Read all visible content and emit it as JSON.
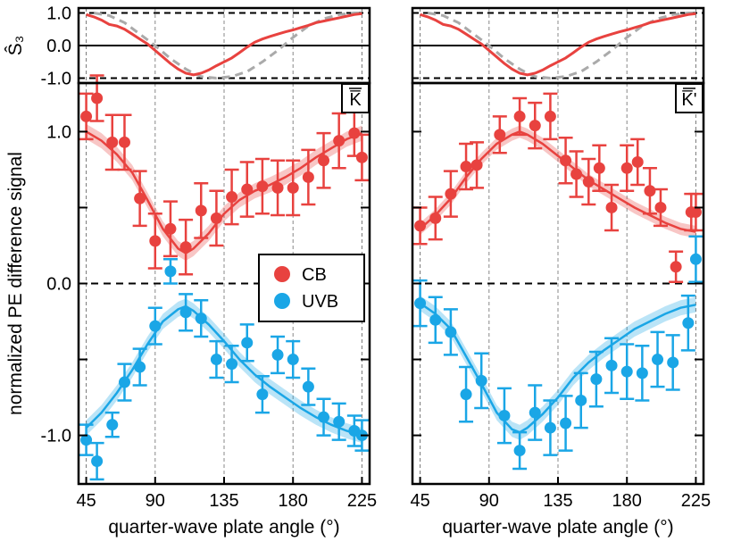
{
  "chart_data": {
    "type": "scatter",
    "colors": {
      "CB": "#e8423f",
      "UVB": "#1aa6e6",
      "theory_s3": "#aaaaaa"
    },
    "xticks": [
      45,
      90,
      135,
      180,
      225
    ],
    "xlim": [
      40,
      230
    ],
    "xlabel": "quarter-wave plate angle (°)",
    "ylabel": "normalized PE difference signal",
    "ylim": [
      -1.32,
      1.32
    ],
    "yticks": [
      {
        "value": 1.0,
        "label": "1.0"
      },
      {
        "value": 0.0,
        "label": "0.0"
      },
      {
        "value": -1.0,
        "label": "-1.0"
      }
    ],
    "s3_label": "Ŝ₃",
    "s3_ylim": [
      -1.15,
      1.15
    ],
    "s3_yticks": [
      {
        "value": 1.0,
        "label": "1.0"
      },
      {
        "value": 0.0,
        "label": "0.0"
      },
      {
        "value": -1.0,
        "label": "-1.0"
      }
    ],
    "legend": {
      "placement": "center-right",
      "entries": [
        {
          "name": "CB",
          "label": "CB"
        },
        {
          "name": "UVB",
          "label": "UVB"
        }
      ]
    },
    "panels": [
      {
        "valley": "K̅",
        "s3_measured": {
          "x": [
            45,
            50,
            55,
            60,
            65,
            70,
            75,
            80,
            85,
            90,
            95,
            100,
            105,
            110,
            115,
            120,
            125,
            130,
            135,
            140,
            145,
            150,
            155,
            160,
            165,
            170,
            175,
            180,
            185,
            190,
            195,
            200,
            205,
            210,
            215,
            220,
            225
          ],
          "y": [
            0.95,
            0.88,
            0.78,
            0.65,
            0.6,
            0.5,
            0.35,
            0.2,
            0.05,
            -0.15,
            -0.35,
            -0.55,
            -0.72,
            -0.85,
            -0.9,
            -0.85,
            -0.75,
            -0.62,
            -0.5,
            -0.38,
            -0.22,
            -0.05,
            0.1,
            0.2,
            0.28,
            0.35,
            0.42,
            0.48,
            0.55,
            0.62,
            0.7,
            0.75,
            0.8,
            0.85,
            0.9,
            0.95,
            0.98
          ]
        },
        "s3_theory": {
          "x": [
            50,
            60,
            70,
            80,
            90,
            100,
            110,
            115,
            120,
            130,
            140,
            150,
            160,
            170,
            180,
            190,
            200,
            210,
            220,
            225
          ],
          "y": [
            1.0,
            0.92,
            0.7,
            0.35,
            0.0,
            -0.4,
            -0.72,
            -0.85,
            -0.95,
            -1.0,
            -0.95,
            -0.8,
            -0.5,
            -0.15,
            0.25,
            0.6,
            0.82,
            0.95,
            1.0,
            1.0
          ]
        },
        "series": [
          {
            "name": "CB",
            "x": [
              45,
              52,
              62,
              70,
              80,
              90,
              100,
              110,
              120,
              130,
              140,
              150,
              160,
              170,
              180,
              190,
              200,
              210,
              220,
              225
            ],
            "y": [
              1.1,
              1.22,
              0.93,
              0.93,
              0.56,
              0.28,
              0.36,
              0.24,
              0.48,
              0.43,
              0.57,
              0.62,
              0.64,
              0.63,
              0.63,
              0.7,
              0.81,
              0.94,
              0.99,
              0.83
            ],
            "err": [
              0.15,
              0.15,
              0.18,
              0.18,
              0.18,
              0.18,
              0.18,
              0.18,
              0.18,
              0.18,
              0.18,
              0.18,
              0.18,
              0.18,
              0.18,
              0.18,
              0.18,
              0.18,
              0.15,
              0.15
            ],
            "fit_x": [
              45,
              55,
              65,
              75,
              85,
              95,
              105,
              110,
              115,
              125,
              135,
              145,
              155,
              165,
              175,
              185,
              195,
              205,
              215,
              225
            ],
            "fit_y": [
              1.0,
              0.94,
              0.85,
              0.73,
              0.55,
              0.36,
              0.23,
              0.2,
              0.23,
              0.33,
              0.46,
              0.55,
              0.61,
              0.65,
              0.7,
              0.76,
              0.83,
              0.89,
              0.95,
              0.99
            ],
            "band": 0.05
          },
          {
            "name": "UVB",
            "x": [
              45,
              52,
              62,
              70,
              80,
              90,
              100,
              110,
              120,
              130,
              140,
              150,
              160,
              170,
              180,
              190,
              200,
              210,
              220,
              225
            ],
            "y": [
              -1.03,
              -1.17,
              -0.93,
              -0.65,
              -0.55,
              -0.28,
              0.08,
              -0.19,
              -0.23,
              -0.5,
              -0.53,
              -0.39,
              -0.73,
              -0.47,
              -0.5,
              -0.68,
              -0.88,
              -0.91,
              -0.97,
              -1.0
            ],
            "err": [
              0.1,
              0.12,
              0.08,
              0.12,
              0.12,
              0.12,
              0.08,
              0.12,
              0.12,
              0.12,
              0.12,
              0.12,
              0.12,
              0.12,
              0.12,
              0.12,
              0.12,
              0.12,
              0.1,
              0.1
            ],
            "fit_x": [
              45,
              55,
              65,
              75,
              85,
              95,
              105,
              110,
              115,
              125,
              135,
              145,
              155,
              165,
              175,
              185,
              195,
              205,
              215,
              225
            ],
            "fit_y": [
              -0.95,
              -0.85,
              -0.72,
              -0.57,
              -0.4,
              -0.25,
              -0.17,
              -0.15,
              -0.18,
              -0.27,
              -0.38,
              -0.5,
              -0.6,
              -0.68,
              -0.75,
              -0.82,
              -0.88,
              -0.93,
              -0.97,
              -1.0
            ],
            "band": 0.05
          }
        ]
      },
      {
        "valley": "K̅'",
        "s3_measured": {
          "x": [
            45,
            50,
            55,
            60,
            65,
            70,
            75,
            80,
            85,
            90,
            95,
            100,
            105,
            110,
            115,
            120,
            125,
            130,
            135,
            140,
            145,
            150,
            155,
            160,
            165,
            170,
            175,
            180,
            185,
            190,
            195,
            200,
            205,
            210,
            215,
            220,
            225
          ],
          "y": [
            0.95,
            0.88,
            0.78,
            0.65,
            0.6,
            0.5,
            0.35,
            0.2,
            0.05,
            -0.15,
            -0.35,
            -0.55,
            -0.72,
            -0.85,
            -0.9,
            -0.85,
            -0.75,
            -0.62,
            -0.5,
            -0.38,
            -0.22,
            -0.05,
            0.1,
            0.2,
            0.28,
            0.35,
            0.42,
            0.48,
            0.55,
            0.62,
            0.7,
            0.75,
            0.8,
            0.85,
            0.9,
            0.95,
            0.98
          ]
        },
        "s3_theory": {
          "x": [
            50,
            60,
            70,
            80,
            90,
            100,
            110,
            115,
            120,
            130,
            140,
            150,
            160,
            170,
            180,
            190,
            200,
            210,
            220,
            225
          ],
          "y": [
            1.0,
            0.92,
            0.7,
            0.35,
            0.0,
            -0.4,
            -0.72,
            -0.85,
            -0.95,
            -1.0,
            -0.95,
            -0.8,
            -0.5,
            -0.15,
            0.25,
            0.6,
            0.82,
            0.95,
            1.0,
            1.0
          ]
        },
        "series": [
          {
            "name": "CB",
            "x": [
              45,
              55,
              65,
              75,
              82,
              97,
              110,
              120,
              130,
              140,
              147,
              155,
              162,
              170,
              180,
              187,
              195,
              202,
              212,
              222,
              225
            ],
            "y": [
              0.38,
              0.43,
              0.59,
              0.77,
              0.78,
              0.98,
              1.1,
              1.04,
              1.1,
              0.81,
              0.72,
              0.67,
              0.76,
              0.5,
              0.76,
              0.8,
              0.61,
              0.5,
              0.11,
              0.47,
              0.47
            ],
            "err": [
              0.12,
              0.14,
              0.15,
              0.15,
              0.15,
              0.12,
              0.12,
              0.15,
              0.15,
              0.15,
              0.15,
              0.15,
              0.15,
              0.15,
              0.15,
              0.15,
              0.15,
              0.12,
              0.1,
              0.12,
              0.12
            ],
            "fit_x": [
              45,
              55,
              65,
              75,
              85,
              95,
              105,
              110,
              115,
              125,
              135,
              145,
              155,
              165,
              175,
              185,
              195,
              205,
              215,
              225
            ],
            "fit_y": [
              0.36,
              0.45,
              0.56,
              0.7,
              0.82,
              0.92,
              0.98,
              1.0,
              0.98,
              0.92,
              0.84,
              0.76,
              0.68,
              0.62,
              0.56,
              0.5,
              0.45,
              0.4,
              0.36,
              0.34
            ],
            "band": 0.04
          },
          {
            "name": "UVB",
            "x": [
              45,
              55,
              65,
              75,
              85,
              100,
              110,
              120,
              130,
              140,
              150,
              160,
              170,
              180,
              190,
              200,
              210,
              220,
              225
            ],
            "y": [
              -0.13,
              -0.24,
              -0.32,
              -0.73,
              -0.64,
              -0.87,
              -1.1,
              -0.85,
              -0.95,
              -0.92,
              -0.77,
              -0.63,
              -0.54,
              -0.58,
              -0.59,
              -0.5,
              -0.52,
              -0.26,
              0.16
            ],
            "err": [
              0.15,
              0.15,
              0.15,
              0.18,
              0.18,
              0.18,
              0.12,
              0.18,
              0.18,
              0.18,
              0.18,
              0.18,
              0.18,
              0.18,
              0.18,
              0.18,
              0.18,
              0.18,
              0.15
            ],
            "fit_x": [
              45,
              55,
              65,
              75,
              85,
              95,
              105,
              110,
              115,
              125,
              135,
              145,
              155,
              165,
              175,
              185,
              195,
              205,
              215,
              225
            ],
            "fit_y": [
              -0.13,
              -0.2,
              -0.3,
              -0.48,
              -0.66,
              -0.85,
              -0.96,
              -0.98,
              -0.95,
              -0.86,
              -0.75,
              -0.62,
              -0.52,
              -0.44,
              -0.37,
              -0.3,
              -0.25,
              -0.2,
              -0.16,
              -0.14
            ],
            "band": 0.05
          }
        ]
      }
    ]
  }
}
